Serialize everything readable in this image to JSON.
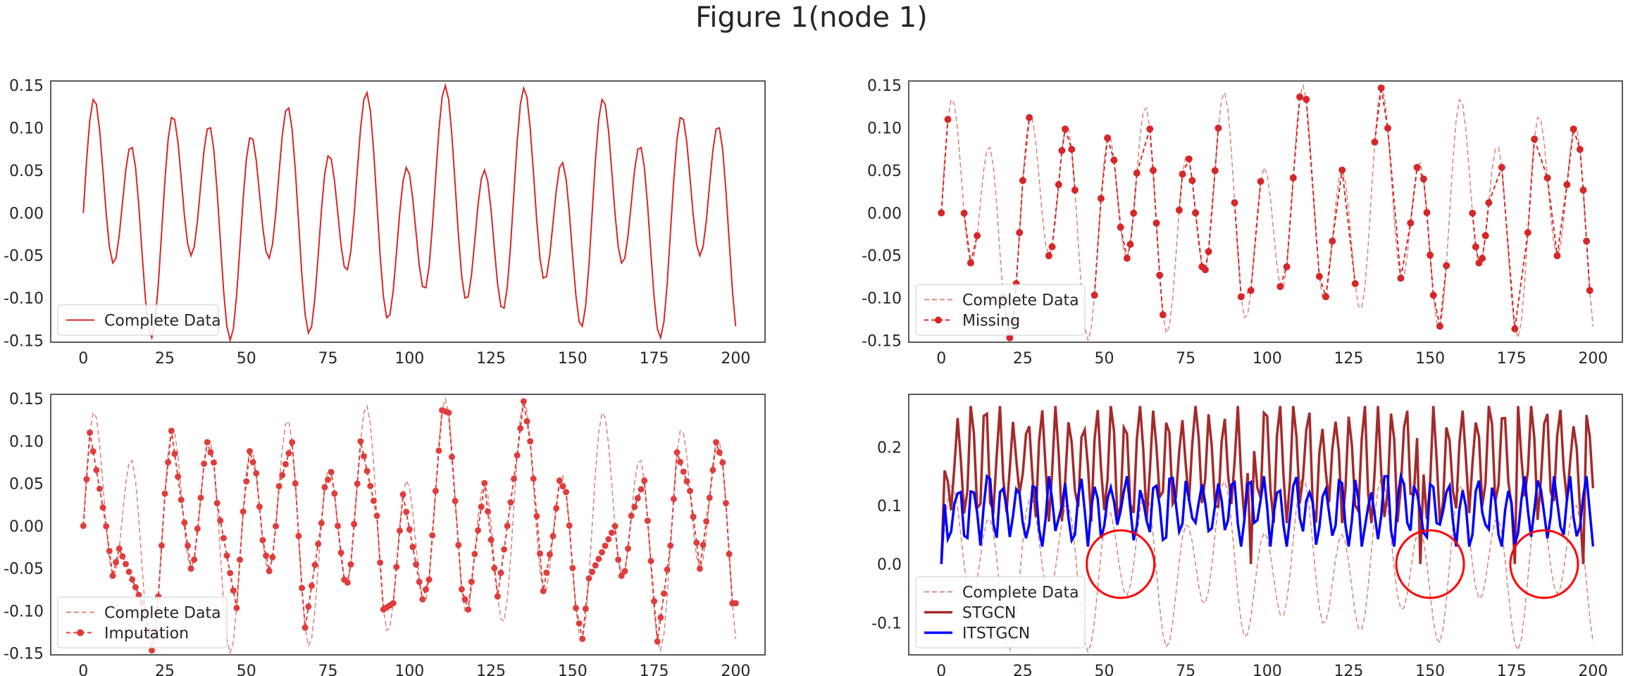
{
  "figure": {
    "title": "Figure 1(node 1)"
  },
  "colors": {
    "complete": "#d62728",
    "complete_faded": "#d98880",
    "missing": "#d62728",
    "imputation": "#e03c3c",
    "stgcn": "#a52a2a",
    "itstgcn": "#0000ff",
    "circle": "#ff0000"
  },
  "chart_data": [
    {
      "type": "line",
      "panel": "top-left",
      "x": "0..200 step 1",
      "xlim": [
        -10,
        209
      ],
      "ylim": [
        -0.152,
        0.155
      ],
      "xticks": [
        "0",
        "25",
        "50",
        "75",
        "100",
        "125",
        "150",
        "175",
        "200"
      ],
      "yticks": [
        "0.15",
        "0.10",
        "0.05",
        "0.00",
        "-0.05",
        "-0.10",
        "-0.15"
      ],
      "legend_position": "lower-left",
      "grid": false,
      "series": [
        {
          "name": "Complete Data",
          "style": "solid",
          "color": "#d62728",
          "values": "y(t) = 0.1·sin(2πt/12) + 0.05·sin(2πt/26), t = 0..200"
        }
      ]
    },
    {
      "type": "line",
      "panel": "top-right",
      "xlim": [
        -10,
        209
      ],
      "ylim": [
        -0.152,
        0.155
      ],
      "xticks": [
        "0",
        "25",
        "50",
        "75",
        "100",
        "125",
        "150",
        "175",
        "200"
      ],
      "yticks": [
        "0.15",
        "0.10",
        "0.05",
        "0.00",
        "-0.05",
        "-0.10",
        "-0.15"
      ],
      "legend_position": "lower-left",
      "grid": false,
      "series": [
        {
          "name": "Complete Data",
          "style": "dashed",
          "color": "#d98880"
        },
        {
          "name": "Missing",
          "style": "dashed-markers",
          "color": "#d62728",
          "observed_t": [
            0,
            2,
            7,
            9,
            11,
            19,
            21,
            22,
            23,
            24,
            25,
            27,
            33,
            34,
            36,
            37,
            38,
            40,
            41,
            47,
            49,
            51,
            53,
            55,
            57,
            58,
            59,
            60,
            64,
            65,
            66,
            67,
            68,
            73,
            74,
            76,
            77,
            78,
            80,
            81,
            82,
            84,
            85,
            90,
            92,
            95,
            98,
            104,
            106,
            108,
            110,
            112,
            116,
            118,
            120,
            123,
            127,
            133,
            135,
            137,
            141,
            144,
            146,
            148,
            149,
            150,
            151,
            153,
            155,
            163,
            164,
            165,
            166,
            167,
            168,
            172,
            176,
            180,
            182,
            186,
            189,
            192,
            194,
            196,
            197,
            198,
            199
          ]
        }
      ]
    },
    {
      "type": "line",
      "panel": "bottom-left",
      "xlim": [
        -10,
        209
      ],
      "ylim": [
        -0.152,
        0.155
      ],
      "xticks": [
        "0",
        "25",
        "50",
        "75",
        "100",
        "125",
        "150",
        "175",
        "200"
      ],
      "yticks": [
        "0.15",
        "0.10",
        "0.05",
        "0.00",
        "-0.05",
        "-0.10",
        "-0.15"
      ],
      "legend_position": "lower-left",
      "grid": false,
      "series": [
        {
          "name": "Complete Data",
          "style": "dashed",
          "color": "#d98880"
        },
        {
          "name": "Imputation",
          "style": "dashed-markers",
          "color": "#e03c3c",
          "values": "observed points plus linear interpolation across gaps, t = 0..200"
        }
      ]
    },
    {
      "type": "line",
      "panel": "bottom-right",
      "xlim": [
        -10,
        209
      ],
      "ylim": [
        -0.155,
        0.29
      ],
      "xticks": [
        "0",
        "25",
        "50",
        "75",
        "100",
        "125",
        "150",
        "175",
        "200"
      ],
      "yticks": [
        "0.2",
        "0.1",
        "0.0",
        "-0.1"
      ],
      "legend_position": "lower-left",
      "grid": false,
      "series": [
        {
          "name": "Complete Data",
          "style": "dashed",
          "color": "#d98880"
        },
        {
          "name": "STGCN",
          "style": "solid-thick",
          "color": "#a52a2a",
          "values": "oscillates roughly 0.07–0.27, occasional drops to ~0.0"
        },
        {
          "name": "ITSTGCN",
          "style": "solid-thick",
          "color": "#0000ff",
          "values": "oscillates roughly 0.03–0.15"
        }
      ],
      "annotations": [
        {
          "type": "circle",
          "center": [
            55,
            0.0
          ],
          "color": "#ff0000"
        },
        {
          "type": "circle",
          "center": [
            150,
            0.0
          ],
          "color": "#ff0000"
        },
        {
          "type": "circle",
          "center": [
            185,
            0.0
          ],
          "color": "#ff0000"
        }
      ]
    }
  ]
}
